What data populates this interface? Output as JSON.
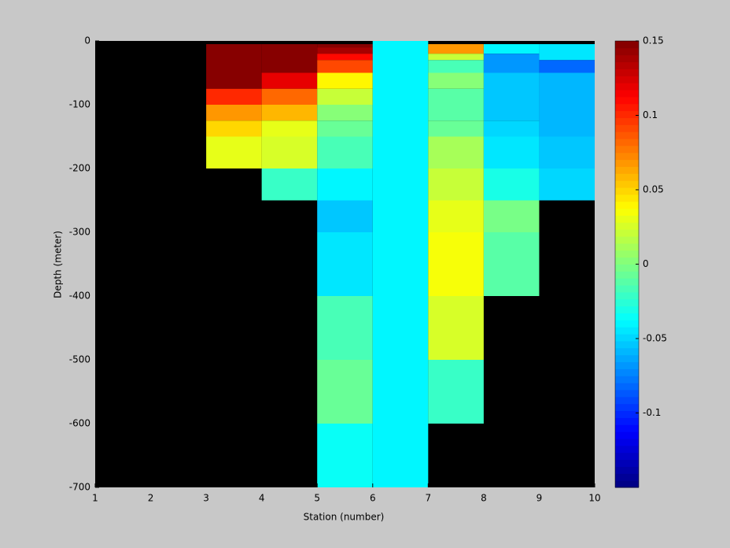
{
  "chart_data": {
    "type": "heatmap",
    "xlabel": "Station (number)",
    "ylabel": "Depth (meter)",
    "xlim": [
      1,
      10
    ],
    "ylim": [
      -700,
      0
    ],
    "xticks": [
      1,
      2,
      3,
      4,
      5,
      6,
      7,
      8,
      9,
      10
    ],
    "yticks": [
      0,
      -100,
      -200,
      -300,
      -400,
      -500,
      -600,
      -700
    ],
    "colormap": "jet",
    "clim": [
      -0.15,
      0.15
    ],
    "cticks": [
      -0.1,
      -0.05,
      0,
      0.05,
      0.1,
      0.15
    ],
    "missing_color": "#000000",
    "cells": [
      [
        3,
        4,
        -5,
        -75,
        0.15
      ],
      [
        3,
        4,
        -75,
        -100,
        0.1
      ],
      [
        3,
        4,
        -100,
        -125,
        0.07
      ],
      [
        3,
        4,
        -125,
        -150,
        0.05
      ],
      [
        3,
        4,
        -150,
        -200,
        0.03
      ],
      [
        4,
        5,
        -5,
        -50,
        0.15
      ],
      [
        4,
        5,
        -50,
        -75,
        0.12
      ],
      [
        4,
        5,
        -75,
        -100,
        0.08
      ],
      [
        4,
        5,
        -100,
        -125,
        0.06
      ],
      [
        4,
        5,
        -125,
        -150,
        0.03
      ],
      [
        4,
        5,
        -150,
        -200,
        0.025
      ],
      [
        4,
        5,
        -200,
        -250,
        -0.02
      ],
      [
        5,
        6,
        -5,
        -10,
        0.15
      ],
      [
        5,
        6,
        -10,
        -20,
        0.14
      ],
      [
        5,
        6,
        -20,
        -30,
        0.11
      ],
      [
        5,
        6,
        -30,
        -50,
        0.09
      ],
      [
        5,
        6,
        -50,
        -75,
        0.04
      ],
      [
        5,
        6,
        -75,
        -100,
        0.02
      ],
      [
        5,
        6,
        -100,
        -125,
        0.003
      ],
      [
        5,
        6,
        -125,
        -150,
        -0.005
      ],
      [
        5,
        6,
        -150,
        -200,
        -0.015
      ],
      [
        5,
        6,
        -200,
        -250,
        -0.04
      ],
      [
        5,
        6,
        -250,
        -300,
        -0.055
      ],
      [
        5,
        6,
        -300,
        -400,
        -0.045
      ],
      [
        5,
        6,
        -400,
        -500,
        -0.015
      ],
      [
        5,
        6,
        -500,
        -600,
        -0.005
      ],
      [
        5,
        6,
        -600,
        -700,
        -0.035
      ],
      [
        6,
        7,
        0,
        -700,
        -0.04
      ],
      [
        7,
        8,
        -5,
        -20,
        0.07
      ],
      [
        7,
        8,
        -20,
        -30,
        0.02
      ],
      [
        7,
        8,
        -30,
        -50,
        -0.015
      ],
      [
        7,
        8,
        -50,
        -75,
        0
      ],
      [
        7,
        8,
        -75,
        -125,
        -0.01
      ],
      [
        7,
        8,
        -125,
        -150,
        -0.005
      ],
      [
        7,
        8,
        -150,
        -200,
        0.01
      ],
      [
        7,
        8,
        -200,
        -250,
        0.02
      ],
      [
        7,
        8,
        -250,
        -300,
        0.03
      ],
      [
        7,
        8,
        -300,
        -400,
        0.035
      ],
      [
        7,
        8,
        -400,
        -500,
        0.025
      ],
      [
        7,
        8,
        -500,
        -600,
        -0.02
      ],
      [
        8,
        9,
        -5,
        -20,
        -0.04
      ],
      [
        8,
        9,
        -20,
        -50,
        -0.07
      ],
      [
        8,
        9,
        -50,
        -125,
        -0.055
      ],
      [
        8,
        9,
        -125,
        -150,
        -0.05
      ],
      [
        8,
        9,
        -150,
        -200,
        -0.045
      ],
      [
        8,
        9,
        -200,
        -250,
        -0.03
      ],
      [
        8,
        9,
        -250,
        -300,
        -0.003
      ],
      [
        8,
        9,
        -300,
        -400,
        -0.01
      ],
      [
        9,
        10,
        -5,
        -30,
        -0.045
      ],
      [
        9,
        10,
        -30,
        -50,
        -0.08
      ],
      [
        9,
        10,
        -50,
        -100,
        -0.06
      ],
      [
        9,
        10,
        -100,
        -150,
        -0.06
      ],
      [
        9,
        10,
        -150,
        -200,
        -0.055
      ],
      [
        9,
        10,
        -200,
        -250,
        -0.05
      ]
    ]
  }
}
